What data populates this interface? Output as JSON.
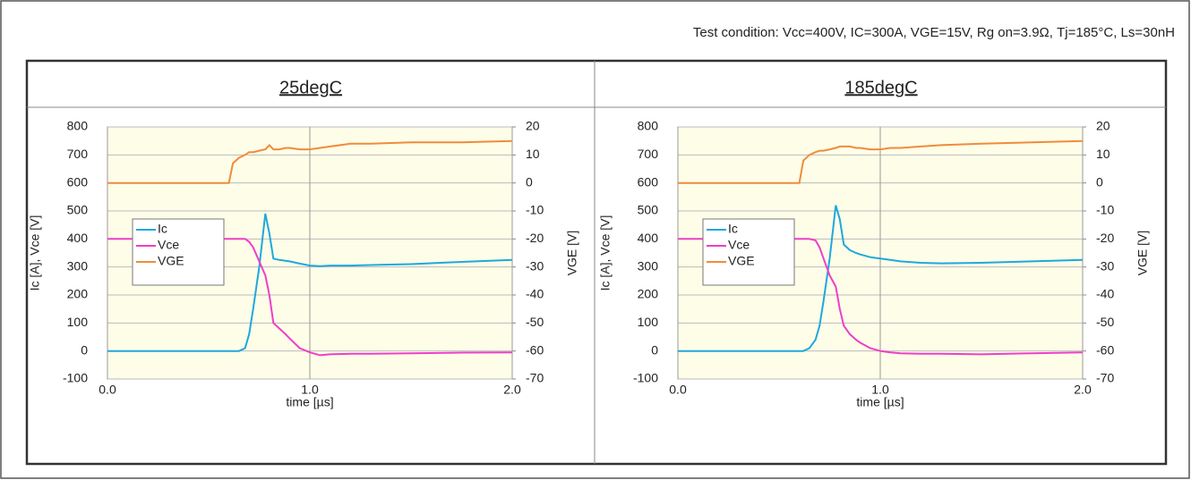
{
  "test_condition": "Test condition: Vcc=400V, IC=300A, VGE=15V, Rg on=3.9Ω, Tj=185°C, Ls=30nH",
  "chart_data": [
    {
      "type": "line",
      "title": "25degC",
      "xlabel": "time [µs]",
      "ylabel": "Ic [A], Vce [V]",
      "y2label": "VGE [V]",
      "grid": true,
      "legend": "left",
      "xlim": [
        0,
        2
      ],
      "xticks": [
        {
          "value": 0,
          "label": "0.0"
        },
        {
          "value": 1,
          "label": "1.0"
        },
        {
          "value": 2,
          "label": "2.0"
        }
      ],
      "ylim": [
        -100,
        800
      ],
      "yticks": [
        -100,
        0,
        100,
        200,
        300,
        400,
        500,
        600,
        700,
        800
      ],
      "y2lim": [
        -70,
        20
      ],
      "y2ticks": [
        -70,
        -60,
        -50,
        -40,
        -30,
        -20,
        -10,
        0,
        10,
        20
      ],
      "x": [
        0,
        0.2,
        0.4,
        0.6,
        0.62,
        0.65,
        0.68,
        0.7,
        0.72,
        0.75,
        0.78,
        0.8,
        0.82,
        0.85,
        0.88,
        0.9,
        0.95,
        1.0,
        1.05,
        1.1,
        1.2,
        1.3,
        1.5,
        1.75,
        2.0
      ],
      "series": [
        {
          "name": "Ic",
          "color": "#1fa8de",
          "values": [
            0,
            0,
            0,
            0,
            0,
            0,
            10,
            60,
            150,
            300,
            490,
            420,
            330,
            325,
            322,
            320,
            312,
            305,
            303,
            305,
            305,
            307,
            310,
            318,
            325
          ]
        },
        {
          "name": "Vce",
          "color": "#ee3fc8",
          "values": [
            400,
            400,
            400,
            400,
            400,
            400,
            400,
            390,
            370,
            320,
            270,
            200,
            100,
            80,
            60,
            45,
            10,
            -5,
            -15,
            -12,
            -10,
            -10,
            -8,
            -6,
            -5
          ]
        },
        {
          "name": "VGE",
          "color": "#f08c3a",
          "axis": "y2",
          "values": [
            0,
            0,
            0,
            0,
            7,
            9,
            10,
            11,
            11,
            11.5,
            12,
            13.5,
            12,
            12,
            12.5,
            12.5,
            12,
            12,
            12.5,
            13,
            14,
            14,
            14.5,
            14.5,
            15
          ]
        }
      ]
    },
    {
      "type": "line",
      "title": "185degC",
      "xlabel": "time [µs]",
      "ylabel": "Ic [A], Vce [V]",
      "y2label": "VGE [V]",
      "grid": true,
      "legend": "left",
      "xlim": [
        0,
        2
      ],
      "xticks": [
        {
          "value": 0,
          "label": "0.0"
        },
        {
          "value": 1,
          "label": "1.0"
        },
        {
          "value": 2,
          "label": "2.0"
        }
      ],
      "ylim": [
        -100,
        800
      ],
      "yticks": [
        -100,
        0,
        100,
        200,
        300,
        400,
        500,
        600,
        700,
        800
      ],
      "y2lim": [
        -70,
        20
      ],
      "y2ticks": [
        -70,
        -60,
        -50,
        -40,
        -30,
        -20,
        -10,
        0,
        10,
        20
      ],
      "x": [
        0,
        0.2,
        0.4,
        0.6,
        0.62,
        0.65,
        0.68,
        0.7,
        0.72,
        0.75,
        0.78,
        0.8,
        0.82,
        0.85,
        0.88,
        0.9,
        0.95,
        1.0,
        1.05,
        1.1,
        1.2,
        1.3,
        1.5,
        1.75,
        2.0
      ],
      "series": [
        {
          "name": "Ic",
          "color": "#1fa8de",
          "values": [
            0,
            0,
            0,
            0,
            0,
            10,
            40,
            90,
            180,
            330,
            520,
            470,
            380,
            360,
            350,
            345,
            335,
            330,
            325,
            320,
            315,
            313,
            315,
            320,
            325
          ]
        },
        {
          "name": "Vce",
          "color": "#ee3fc8",
          "values": [
            400,
            400,
            400,
            400,
            400,
            400,
            395,
            370,
            330,
            270,
            230,
            150,
            90,
            60,
            40,
            30,
            10,
            0,
            -5,
            -8,
            -10,
            -10,
            -12,
            -8,
            -5
          ]
        },
        {
          "name": "VGE",
          "color": "#f08c3a",
          "axis": "y2",
          "values": [
            0,
            0,
            0,
            0,
            8,
            10,
            11,
            11.5,
            11.5,
            12,
            12.5,
            13,
            13,
            13,
            12.5,
            12.5,
            12,
            12,
            12.5,
            12.5,
            13,
            13.5,
            14,
            14.5,
            15
          ]
        }
      ]
    }
  ]
}
